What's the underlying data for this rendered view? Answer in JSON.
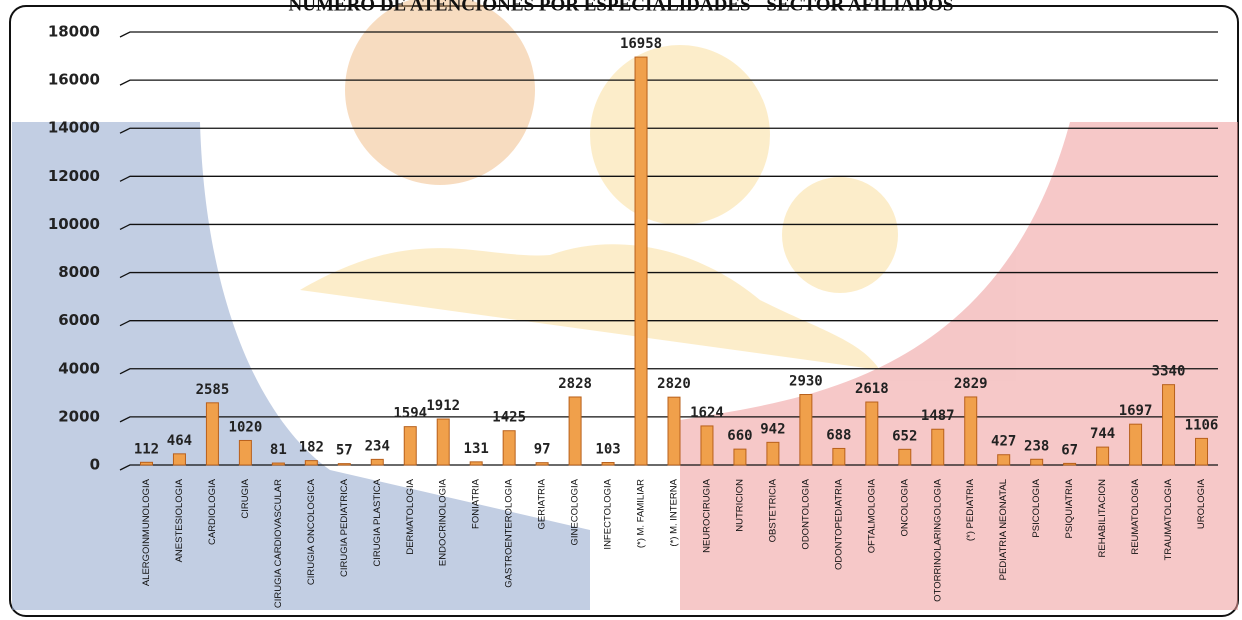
{
  "chart_data": {
    "type": "bar",
    "title": "NÚMERO DE ATENCIONES POR ESPECIALIDADES - SECTOR AFILIADOS",
    "categories": [
      "ALERGOINMUNOLOGIA",
      "ANESTESIOLOGIA",
      "CARDIOLOGIA",
      "CIRUGIA",
      "CIRUGIA CARDIOVASCULAR",
      "CIRUGIA ONCOLOGICA",
      "CIRUGIA PEDIATRICA",
      "CIRUGIA PLASTICA",
      "DERMATOLOGIA",
      "ENDOCRINOLOGIA",
      "FONIATRIA",
      "GASTROENTEROLOGIA",
      "GERIATRIA",
      "GINECOLOGIA",
      "INFECTOLOGIA",
      "(*) M. FAMILIAR",
      "(*) M. INTERNA",
      "NEUROCIRUGIA",
      "NUTRICION",
      "OBSTETRICIA",
      "ODONTOLOGIA",
      "ODONTOPEDIATRIA",
      "OFTALMOLOGIA",
      "ONCOLOGIA",
      "OTORRINOLARINGOLOGIA",
      "(*) PEDIATRIA",
      "PEDIATRIA NEONATAL",
      "PSICOLOGIA",
      "PSIQUIATRIA",
      "REHABILITACION",
      "REUMATOLOGIA",
      "TRAUMATOLOGIA",
      "UROLOGIA"
    ],
    "values": [
      112,
      464,
      2585,
      1020,
      81,
      182,
      57,
      234,
      1594,
      1912,
      131,
      1425,
      97,
      2828,
      103,
      16958,
      2820,
      1624,
      660,
      942,
      2930,
      688,
      2618,
      652,
      1487,
      2829,
      427,
      238,
      67,
      744,
      1697,
      3340,
      1106
    ],
    "color": "#f0a04b",
    "ylim": [
      0,
      18000
    ],
    "yticks": [
      0,
      2000,
      4000,
      6000,
      8000,
      10000,
      12000,
      14000,
      16000,
      18000
    ],
    "grid": true
  }
}
